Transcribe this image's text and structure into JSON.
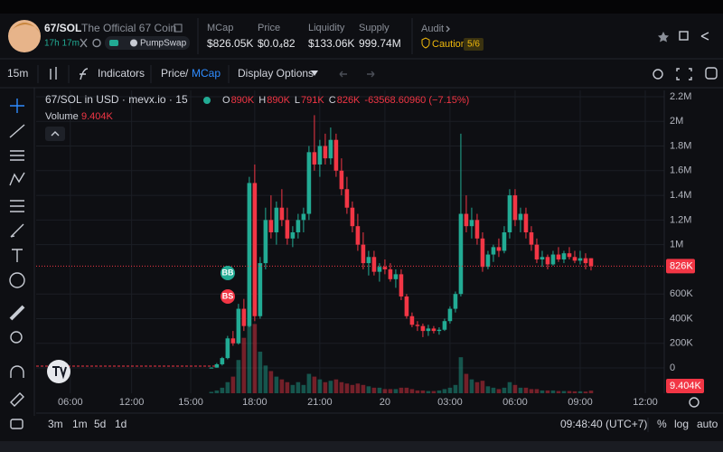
{
  "header": {
    "pair": "67/SOL",
    "name": "The Official 67 Coin",
    "age": "17h 17m",
    "dex": "PumpSwap",
    "stats": [
      {
        "label": "MCap",
        "value": "$826.05K"
      },
      {
        "label": "Price",
        "value": "$0.0₄82"
      },
      {
        "label": "Liquidity",
        "value": "$133.06K"
      },
      {
        "label": "Supply",
        "value": "999.74M"
      }
    ],
    "audit": {
      "label": "Audit",
      "status": "Caution",
      "score": "5/6"
    }
  },
  "toolbar": {
    "interval": "15m",
    "indicators": "Indicators",
    "price": "Price",
    "slash": "/",
    "mcap": "MCap",
    "display": "Display Options"
  },
  "chart_data": {
    "type": "candlestick",
    "title": "67/SOL in USD · mevx.io · 15",
    "ohlc_legend": [
      {
        "key": "O",
        "value": "890K"
      },
      {
        "key": "H",
        "value": "890K"
      },
      {
        "key": "L",
        "value": "791K"
      },
      {
        "key": "C",
        "value": "826K"
      }
    ],
    "change": "-63568.60960 (−7.15%)",
    "volume_legend": {
      "name": "Volume",
      "value": "9.404K"
    },
    "markers": [
      "BB",
      "BS"
    ],
    "up_color": "#22ab94",
    "down_color": "#f23645",
    "grid": true,
    "x": [
      -8,
      -7,
      -6,
      -5,
      -4,
      -3,
      -2,
      -1,
      0,
      1,
      2,
      3,
      4,
      5,
      6,
      7,
      8,
      9,
      10,
      11,
      12,
      13,
      14,
      15,
      16,
      17,
      18,
      19,
      20,
      21,
      22,
      23,
      24,
      25,
      26,
      27,
      28,
      29,
      30,
      31,
      32,
      33,
      34,
      35,
      36,
      37,
      38,
      39,
      40,
      41,
      42,
      43,
      44,
      45,
      46,
      47,
      48,
      49,
      50,
      51,
      52,
      53,
      54,
      55,
      56,
      57,
      58,
      59,
      60,
      61,
      62
    ],
    "open": [
      2000,
      3000,
      30000,
      80000,
      240000,
      200000,
      480000,
      340000,
      1500000,
      420000,
      850000,
      1200000,
      1100000,
      1300000,
      1200000,
      1050000,
      1100000,
      1200000,
      1250000,
      1750000,
      1650000,
      1800000,
      1700000,
      1850000,
      1600000,
      1450000,
      1300000,
      1150000,
      1000000,
      850000,
      900000,
      780000,
      820000,
      800000,
      720000,
      760000,
      580000,
      420000,
      350000,
      340000,
      300000,
      320000,
      300000,
      310000,
      380000,
      480000,
      600000,
      1250000,
      1150000,
      1200000,
      1050000,
      820000,
      920000,
      980000,
      950000,
      1100000,
      1400000,
      1200000,
      1250000,
      1100000,
      1000000,
      880000,
      900000,
      840000,
      920000,
      880000,
      930000,
      900000,
      870000,
      890000,
      890000
    ],
    "high": [
      5000,
      40000,
      90000,
      260000,
      300000,
      520000,
      560000,
      1550000,
      1650000,
      900000,
      1300000,
      1400000,
      1350000,
      1450000,
      1300000,
      1150000,
      1250000,
      1300000,
      1800000,
      2050000,
      1850000,
      1900000,
      1950000,
      1900000,
      1700000,
      1550000,
      1350000,
      1250000,
      1100000,
      950000,
      950000,
      850000,
      880000,
      850000,
      800000,
      800000,
      600000,
      450000,
      380000,
      360000,
      350000,
      340000,
      330000,
      400000,
      500000,
      620000,
      1900000,
      1400000,
      1300000,
      1250000,
      1100000,
      950000,
      1000000,
      1050000,
      1150000,
      1450000,
      1450000,
      1300000,
      1300000,
      1150000,
      1050000,
      950000,
      920000,
      950000,
      980000,
      950000,
      980000,
      950000,
      950000,
      930000,
      890000
    ],
    "low": [
      1000,
      2000,
      20000,
      70000,
      180000,
      190000,
      300000,
      330000,
      380000,
      400000,
      800000,
      1050000,
      1000000,
      1150000,
      1000000,
      980000,
      1050000,
      1100000,
      1200000,
      1600000,
      1550000,
      1650000,
      1650000,
      1550000,
      1400000,
      1250000,
      1100000,
      950000,
      800000,
      750000,
      750000,
      700000,
      760000,
      700000,
      650000,
      550000,
      400000,
      330000,
      300000,
      250000,
      260000,
      280000,
      270000,
      300000,
      360000,
      450000,
      580000,
      1100000,
      1050000,
      1000000,
      780000,
      800000,
      860000,
      900000,
      930000,
      1050000,
      1150000,
      1100000,
      1050000,
      950000,
      850000,
      820000,
      800000,
      830000,
      860000,
      850000,
      880000,
      850000,
      840000,
      800000,
      791000
    ],
    "close": [
      3000,
      30000,
      80000,
      240000,
      200000,
      480000,
      340000,
      1500000,
      420000,
      850000,
      1200000,
      1100000,
      1300000,
      1200000,
      1050000,
      1100000,
      1200000,
      1250000,
      1750000,
      1650000,
      1800000,
      1700000,
      1850000,
      1600000,
      1450000,
      1300000,
      1150000,
      1000000,
      850000,
      900000,
      780000,
      820000,
      800000,
      720000,
      760000,
      580000,
      420000,
      350000,
      340000,
      300000,
      320000,
      300000,
      310000,
      380000,
      480000,
      600000,
      1250000,
      1150000,
      1200000,
      1050000,
      820000,
      920000,
      980000,
      950000,
      1100000,
      1400000,
      1200000,
      1250000,
      1100000,
      1000000,
      880000,
      900000,
      840000,
      920000,
      880000,
      930000,
      900000,
      870000,
      890000,
      850000,
      826050
    ],
    "volume": [
      5000,
      10000,
      20000,
      40000,
      60000,
      120000,
      200000,
      310000,
      250000,
      150000,
      100000,
      80000,
      60000,
      50000,
      40000,
      30000,
      40000,
      30000,
      70000,
      60000,
      50000,
      40000,
      45000,
      50000,
      40000,
      35000,
      30000,
      35000,
      30000,
      25000,
      20000,
      20000,
      15000,
      15000,
      15000,
      20000,
      20000,
      15000,
      10000,
      10000,
      8000,
      8000,
      10000,
      15000,
      20000,
      30000,
      130000,
      70000,
      50000,
      40000,
      45000,
      25000,
      20000,
      15000,
      20000,
      40000,
      30000,
      20000,
      20000,
      15000,
      15000,
      10000,
      10000,
      10000,
      8000,
      8000,
      8000,
      7000,
      7000,
      6000,
      9404
    ],
    "last_price": {
      "value": 826050,
      "label": "826K"
    },
    "last_volume": {
      "value": 9404,
      "label": "9.404K"
    },
    "xlim": [
      -40.3,
      75.5
    ],
    "ylim": [
      -205000,
      2251000
    ],
    "xticks": [
      {
        "value": -34,
        "label": "06:00"
      },
      {
        "value": -22.7,
        "label": "12:00"
      },
      {
        "value": -11.8,
        "label": "15:00"
      },
      {
        "value": 0,
        "label": "18:00"
      },
      {
        "value": 12,
        "label": "21:00"
      },
      {
        "value": 24,
        "label": "20"
      },
      {
        "value": 36,
        "label": "03:00"
      },
      {
        "value": 48,
        "label": "06:00"
      },
      {
        "value": 60,
        "label": "09:00"
      },
      {
        "value": 72,
        "label": "12:00"
      }
    ],
    "yticks": [
      {
        "value": 0,
        "label": "0"
      },
      {
        "value": 200000,
        "label": "200K"
      },
      {
        "value": 400000,
        "label": "400K"
      },
      {
        "value": 600000,
        "label": "600K"
      },
      {
        "value": 1000000,
        "label": "1M"
      },
      {
        "value": 1200000,
        "label": "1.2M"
      },
      {
        "value": 1400000,
        "label": "1.4M"
      },
      {
        "value": 1600000,
        "label": "1.6M"
      },
      {
        "value": 1800000,
        "label": "1.8M"
      },
      {
        "value": 2000000,
        "label": "2M"
      },
      {
        "value": 2200000,
        "label": "2.2M"
      }
    ]
  },
  "footer": {
    "ranges": [
      "3m",
      "1m",
      "5d",
      "1d"
    ],
    "clock": "09:48:40 (UTC+7)",
    "percent": "%",
    "log": "log",
    "auto": "auto"
  }
}
